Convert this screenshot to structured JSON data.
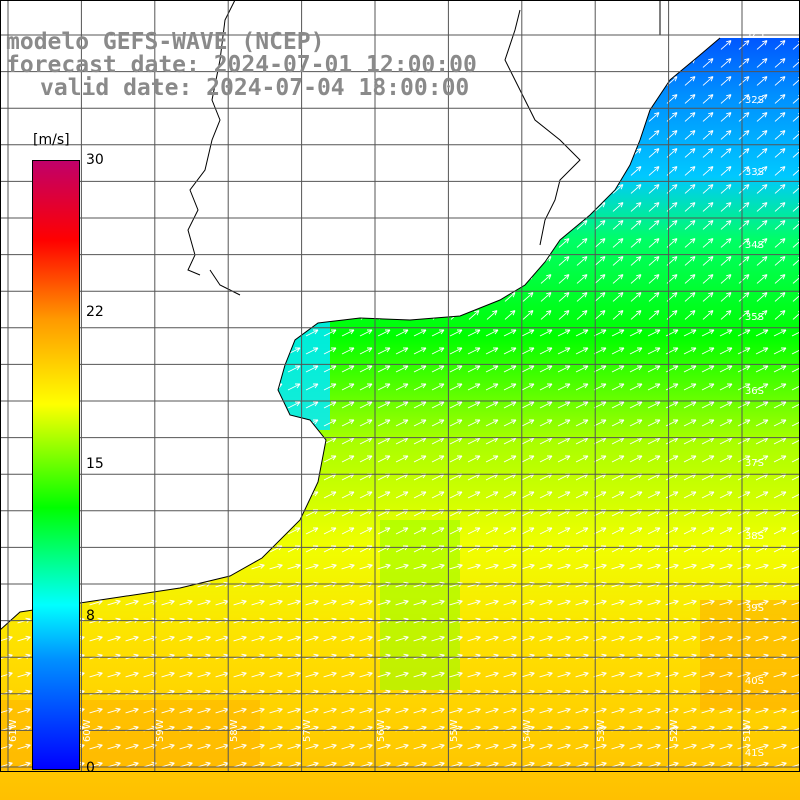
{
  "title": {
    "line1": "modelo GEFS-WAVE (NCEP)",
    "line2": "forecast date: 2024-07-01 12:00:00",
    "line3": "valid date: 2024-07-04 18:00:00"
  },
  "colorbar": {
    "unit": "[m/s]",
    "ticks": [
      "30",
      "22",
      "15",
      "8",
      "0"
    ],
    "colors": [
      "#0000ff",
      "#0090ff",
      "#00ffff",
      "#00ff00",
      "#ffff00",
      "#ff9900",
      "#ff0000",
      "#c0006a"
    ]
  },
  "lat_labels": [
    "32S",
    "33S",
    "34S",
    "35S",
    "36S",
    "37S",
    "38S",
    "39S",
    "40S",
    "41S"
  ],
  "lon_labels": [
    "61W",
    "60W",
    "59W",
    "58W",
    "57W",
    "56W",
    "55W",
    "54W",
    "53W",
    "52W",
    "51W"
  ]
}
